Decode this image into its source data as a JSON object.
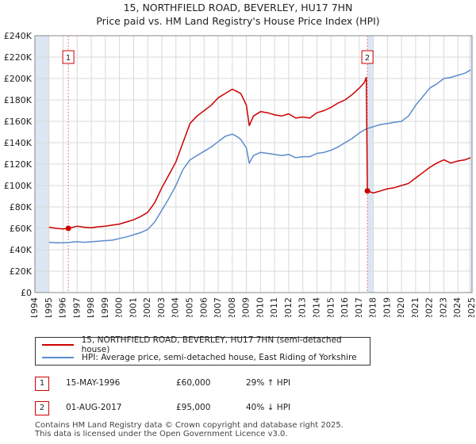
{
  "title": "15, NORTHFIELD ROAD, BEVERLEY, HU17 7HN",
  "subtitle": "Price paid vs. HM Land Registry's House Price Index (HPI)",
  "colors": {
    "property": "#cc0000",
    "hpi": "#5b8ccc",
    "marker_line": "#e08080",
    "shade": "#dde6f3"
  },
  "chart_data": {
    "type": "line",
    "xlim": [
      1994,
      2025
    ],
    "ylim": [
      0,
      240000
    ],
    "y_ticks": [
      0,
      20000,
      40000,
      60000,
      80000,
      100000,
      120000,
      140000,
      160000,
      180000,
      200000,
      220000,
      240000
    ],
    "y_tick_labels": [
      "£0",
      "£20K",
      "£40K",
      "£60K",
      "£80K",
      "£100K",
      "£120K",
      "£140K",
      "£160K",
      "£180K",
      "£200K",
      "£220K",
      "£240K"
    ],
    "x_ticks": [
      1994,
      1995,
      1996,
      1997,
      1998,
      1999,
      2000,
      2001,
      2002,
      2003,
      2004,
      2005,
      2006,
      2007,
      2008,
      2009,
      2010,
      2011,
      2012,
      2013,
      2014,
      2015,
      2016,
      2017,
      2018,
      2019,
      2020,
      2021,
      2022,
      2023,
      2024,
      2025
    ],
    "x_tick_labels": [
      "1994",
      "1995",
      "1996",
      "1997",
      "1998",
      "1999",
      "2000",
      "2001",
      "2002",
      "2003",
      "2004",
      "2005",
      "2006",
      "2007",
      "2008",
      "2009",
      "2010",
      "2011",
      "2012",
      "2013",
      "2014",
      "2015",
      "2016",
      "2017",
      "2018",
      "2019",
      "2020",
      "2021",
      "2022",
      "2023",
      "2024",
      "2025"
    ],
    "grid": true,
    "shaded_ranges": [
      [
        1994,
        1995
      ],
      [
        2017.58,
        2018
      ],
      [
        2024.8,
        2025
      ]
    ],
    "series": [
      {
        "name": "15, NORTHFIELD ROAD, BEVERLEY, HU17 7HN (semi-detached house)",
        "x": [
          1995,
          1995.5,
          1996,
          1996.37,
          1997,
          1997.5,
          1998,
          1998.5,
          1999,
          1999.5,
          2000,
          2000.5,
          2001,
          2001.5,
          2002,
          2002.5,
          2003,
          2003.5,
          2004,
          2004.5,
          2005,
          2005.5,
          2006,
          2006.5,
          2007,
          2007.5,
          2008,
          2008.3,
          2008.6,
          2009,
          2009.2,
          2009.5,
          2010,
          2010.5,
          2011,
          2011.5,
          2012,
          2012.5,
          2013,
          2013.5,
          2014,
          2014.5,
          2015,
          2015.5,
          2016,
          2016.5,
          2017,
          2017.35,
          2017.5,
          2017.58,
          2018,
          2018.5,
          2019,
          2019.5,
          2020,
          2020.5,
          2021,
          2021.5,
          2022,
          2022.5,
          2023,
          2023.5,
          2024,
          2024.5,
          2024.9
        ],
        "y": [
          61000,
          60000,
          59500,
          60000,
          62000,
          61000,
          60500,
          61500,
          62000,
          63000,
          64000,
          66000,
          68000,
          71000,
          75000,
          84000,
          98000,
          110000,
          122000,
          140000,
          158000,
          165000,
          170000,
          175000,
          182000,
          186000,
          190000,
          188000,
          186000,
          175000,
          156000,
          165000,
          169000,
          168000,
          166000,
          165000,
          167000,
          163000,
          164000,
          163000,
          168000,
          170000,
          173000,
          177000,
          180000,
          185000,
          191000,
          196000,
          201000,
          95000,
          93000,
          95000,
          97000,
          98000,
          100000,
          102000,
          107000,
          112000,
          117000,
          121000,
          124000,
          121000,
          123000,
          124000,
          126000
        ]
      },
      {
        "name": "HPI: Average price, semi-detached house, East Riding of Yorkshire",
        "x": [
          1995,
          1995.5,
          1996,
          1996.5,
          1997,
          1997.5,
          1998,
          1998.5,
          1999,
          1999.5,
          2000,
          2000.5,
          2001,
          2001.5,
          2002,
          2002.5,
          2003,
          2003.5,
          2004,
          2004.5,
          2005,
          2005.5,
          2006,
          2006.5,
          2007,
          2007.5,
          2008,
          2008.3,
          2008.6,
          2009,
          2009.2,
          2009.5,
          2010,
          2010.5,
          2011,
          2011.5,
          2012,
          2012.5,
          2013,
          2013.5,
          2014,
          2014.5,
          2015,
          2015.5,
          2016,
          2016.5,
          2017,
          2017.5,
          2018,
          2018.5,
          2019,
          2019.5,
          2020,
          2020.5,
          2021,
          2021.5,
          2022,
          2022.5,
          2023,
          2023.5,
          2024,
          2024.5,
          2024.9
        ],
        "y": [
          47000,
          46500,
          46500,
          47000,
          47500,
          47000,
          47500,
          48000,
          48500,
          49000,
          50500,
          52000,
          54000,
          56000,
          59000,
          66000,
          77000,
          88000,
          100000,
          115000,
          124000,
          128000,
          132000,
          136000,
          141000,
          146000,
          148000,
          146000,
          143000,
          135000,
          121000,
          128000,
          131000,
          130000,
          129000,
          128000,
          129000,
          126000,
          127000,
          127000,
          130000,
          131000,
          133000,
          136000,
          140000,
          144000,
          149000,
          153000,
          155000,
          157000,
          158000,
          159000,
          160000,
          165000,
          175000,
          183000,
          191000,
          195000,
          200000,
          201000,
          203000,
          205000,
          208000
        ]
      }
    ],
    "markers": [
      {
        "label": "1",
        "x": 1996.37,
        "y": 60000,
        "label_y": 220000
      },
      {
        "label": "2",
        "x": 2017.58,
        "y": 95000,
        "label_y": 220000
      }
    ]
  },
  "legend": {
    "items": [
      "15, NORTHFIELD ROAD, BEVERLEY, HU17 7HN (semi-detached house)",
      "HPI: Average price, semi-detached house, East Riding of Yorkshire"
    ]
  },
  "annotations": [
    {
      "label": "1",
      "date": "15-MAY-1996",
      "price": "£60,000",
      "hpi": "29% ↑ HPI"
    },
    {
      "label": "2",
      "date": "01-AUG-2017",
      "price": "£95,000",
      "hpi": "40% ↓ HPI"
    }
  ],
  "footer": {
    "line1": "Contains HM Land Registry data © Crown copyright and database right 2025.",
    "line2": "This data is licensed under the Open Government Licence v3.0."
  }
}
